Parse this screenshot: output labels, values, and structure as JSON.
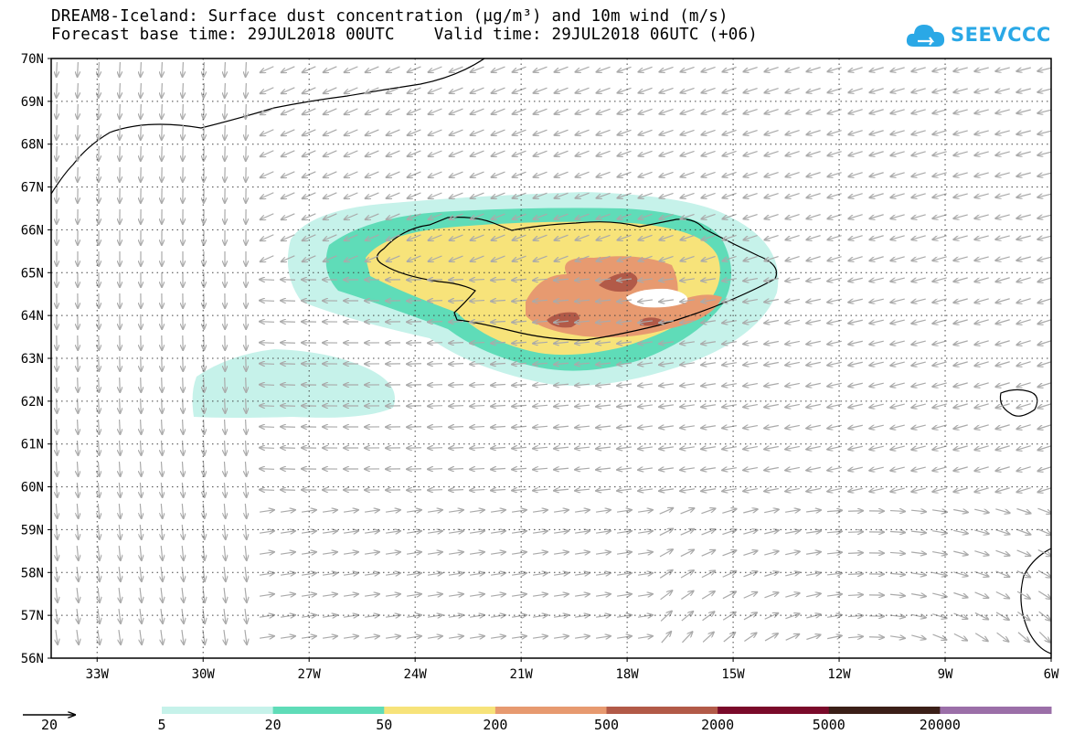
{
  "title": {
    "line1": "DREAM8-Iceland: Surface dust concentration (µg/m³) and 10m wind (m/s)",
    "line2": "Forecast base time: 29JUL2018 00UTC    Valid time: 29JUL2018 06UTC (+06)"
  },
  "logo": {
    "text": "SEEVCCC",
    "icon": "cloud-arrow-icon",
    "color": "#2aa8e6"
  },
  "axes": {
    "lat_labels": [
      "70N",
      "69N",
      "68N",
      "67N",
      "66N",
      "65N",
      "64N",
      "63N",
      "62N",
      "61N",
      "60N",
      "59N",
      "58N",
      "57N",
      "56N"
    ],
    "lon_labels": [
      "33W",
      "30W",
      "27W",
      "24W",
      "21W",
      "18W",
      "15W",
      "12W",
      "9W",
      "6W"
    ],
    "lat_range": [
      56,
      70
    ],
    "lon_range": [
      -34.3,
      -6
    ],
    "grid": "dotted"
  },
  "reference_vector": {
    "label": "20"
  },
  "colorbar": {
    "labels": [
      "5",
      "20",
      "50",
      "200",
      "500",
      "2000",
      "5000",
      "20000"
    ],
    "colors": [
      "#c6f2ea",
      "#5fdcb8",
      "#f7e37a",
      "#e79a70",
      "#b25a48",
      "#7a0a2a",
      "#3b1f18",
      "#9b6fa8"
    ]
  },
  "vector_color": "#aaaaaa"
}
